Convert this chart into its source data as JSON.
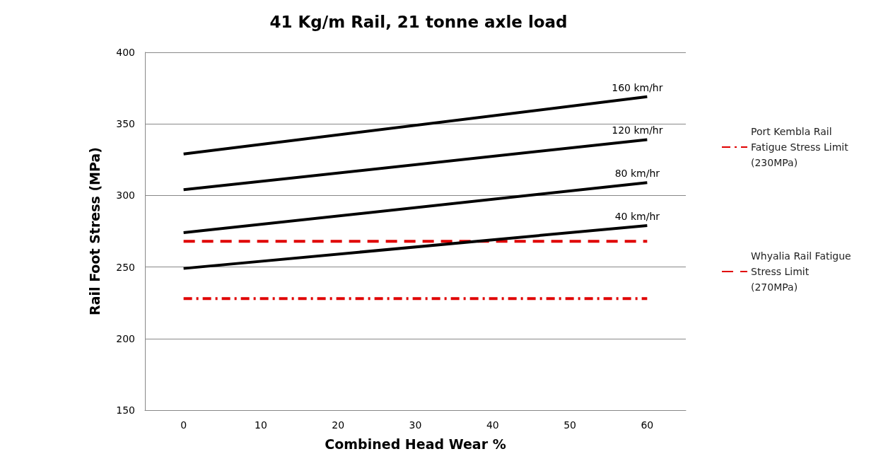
{
  "chart_data": {
    "type": "line",
    "title": "41 Kg/m Rail, 21 tonne axle load",
    "xlabel": "Combined Head Wear %",
    "ylabel": "Rail Foot Stress (MPa)",
    "xlim": [
      -5,
      65
    ],
    "xticks": [
      0,
      10,
      20,
      30,
      40,
      50,
      60
    ],
    "ylim": [
      150,
      400
    ],
    "yticks": [
      150,
      200,
      250,
      300,
      350,
      400
    ],
    "grid": "y",
    "legend": "right",
    "marker": "none",
    "x": [
      0,
      60
    ],
    "series": [
      {
        "name": "160 km/hr",
        "color": "#000000",
        "values": [
          329,
          369
        ],
        "line_style": "solid"
      },
      {
        "name": "120 km/hr",
        "color": "#000000",
        "values": [
          304,
          339
        ],
        "line_style": "solid"
      },
      {
        "name": "80 km/hr",
        "color": "#000000",
        "values": [
          274,
          309
        ],
        "line_style": "solid"
      },
      {
        "name": "40 km/hr",
        "color": "#000000",
        "values": [
          249,
          279
        ],
        "line_style": "solid"
      },
      {
        "name": "Port Kembla Rail Fatigue Stress Limit (230MPa)",
        "color": "#e00000",
        "values": [
          228,
          228
        ],
        "line_style": "dashdot"
      },
      {
        "name": "Whyalia Rail Fatigue Stress Limit (270MPa)",
        "color": "#e00000",
        "values": [
          268,
          268
        ],
        "line_style": "dashed"
      }
    ]
  }
}
